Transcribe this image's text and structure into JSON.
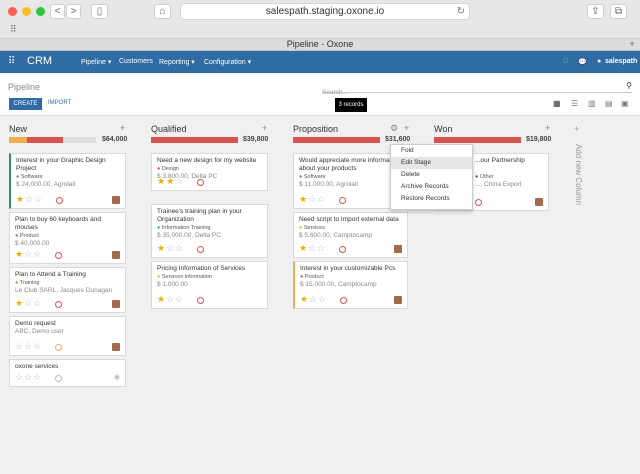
{
  "browser": {
    "url": "salespath.staging.oxone.io",
    "tab_title": "Pipeline - Oxone",
    "back": "<",
    "forward": ">"
  },
  "topnav": {
    "app": "CRM",
    "menus": [
      "Pipeline ▾",
      "Customers",
      "Reporting ▾",
      "Configuration ▾"
    ],
    "user": "salespath"
  },
  "control": {
    "breadcrumb": "Pipeline",
    "search_placeholder": "Search...",
    "create": "CREATE",
    "import": "IMPORT",
    "tooltip": "3 records"
  },
  "columns": [
    {
      "title": "New",
      "amount": "$64,000"
    },
    {
      "title": "Qualified",
      "amount": "$39,800"
    },
    {
      "title": "Proposition",
      "amount": "$31,600"
    },
    {
      "title": "Won",
      "amount": "$19,800"
    }
  ],
  "add_column": "Add new Column",
  "cards": {
    "new": [
      {
        "title": "Interest in your Graphic Design Project",
        "tags": "Software",
        "sub": "$ 24,000.00, Agrolait",
        "stars": 1
      },
      {
        "title": "Plan to buy 60 keyboards and mouses",
        "tags": "Product",
        "sub": "$ 40,000.00",
        "stars": 1
      },
      {
        "title": "Plan to Attend a Training",
        "tags": "Training",
        "sub": "Le Club SARL, Jacques Dunagan",
        "stars": 1
      },
      {
        "title": "Demo request",
        "tags": "",
        "sub": "ABC, Demo user",
        "stars": 0
      },
      {
        "title": "oxone services",
        "tags": "",
        "sub": "",
        "stars": 0
      }
    ],
    "qualified": [
      {
        "title": "Need a new design for my website",
        "tags": "Design",
        "sub": "$ 3,800.00, Delta PC",
        "stars": 2
      },
      {
        "title": "Trainee's training plan in your Organization",
        "tags": "Information  Training",
        "sub": "$ 35,000.00, Delta PC",
        "stars": 1
      },
      {
        "title": "Pricing Information of Services",
        "tags": "Services  Information",
        "sub": "$ 1,000.00",
        "stars": 1
      }
    ],
    "proposition": [
      {
        "title": "Would appreciate more informa... about your products",
        "tags": "Software",
        "sub": "$ 11,000.00, Agrolait",
        "stars": 1
      },
      {
        "title": "Need script to Import external data",
        "tags": "Services",
        "sub": "$ 5,600.00, Camptocamp",
        "stars": 1
      },
      {
        "title": "Interest in your customizable Pcs",
        "tags": "Product",
        "sub": "$ 15,000.00, Camptocamp",
        "stars": 1
      }
    ],
    "won": [
      {
        "title": "...our Partnership",
        "tags": "Other",
        "sub": "..., China Export",
        "stars": 0
      }
    ]
  },
  "dropdown": [
    "Fold",
    "Edit Stage",
    "Delete",
    "Archive Records",
    "Restore Records"
  ]
}
